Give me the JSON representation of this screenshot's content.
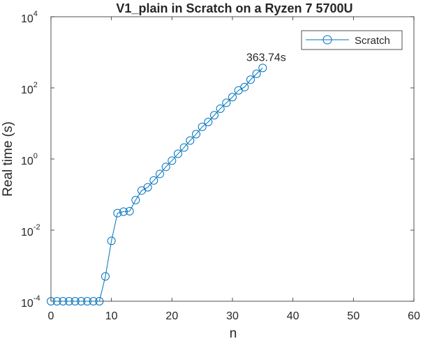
{
  "chart_data": {
    "type": "line",
    "title": "V1_plain in Scratch on a Ryzen 7 5700U",
    "xlabel": "n",
    "ylabel": "Real time (s)",
    "xlim": [
      0,
      60
    ],
    "ylim": [
      0.0001,
      10000
    ],
    "yscale": "log",
    "grid": false,
    "legend_position": "top-right",
    "x_ticks": [
      "0",
      "10",
      "20",
      "30",
      "40",
      "50",
      "60"
    ],
    "y_ticks": [
      {
        "base": "10",
        "exp": "-4"
      },
      {
        "base": "10",
        "exp": "-2"
      },
      {
        "base": "10",
        "exp": "0"
      },
      {
        "base": "10",
        "exp": "2"
      },
      {
        "base": "10",
        "exp": "4"
      }
    ],
    "series": [
      {
        "name": "Scratch",
        "color": "#0072bd",
        "marker": "circle",
        "x": [
          0,
          1,
          2,
          3,
          4,
          5,
          6,
          7,
          8,
          9,
          10,
          11,
          12,
          13,
          14,
          15,
          16,
          17,
          18,
          19,
          20,
          21,
          22,
          23,
          24,
          25,
          26,
          27,
          28,
          29,
          30,
          31,
          32,
          33,
          34,
          35
        ],
        "y": [
          0.0001,
          0.0001,
          0.0001,
          0.0001,
          0.0001,
          0.0001,
          0.0001,
          0.0001,
          0.0001,
          0.0005,
          0.005,
          0.03,
          0.033,
          0.034,
          0.07,
          0.13,
          0.16,
          0.25,
          0.38,
          0.6,
          0.9,
          1.4,
          2.1,
          3.3,
          5,
          8,
          11,
          17,
          26,
          38,
          55,
          85,
          105,
          170,
          250,
          363.74
        ]
      }
    ],
    "annotations": [
      {
        "text": "363.74s",
        "x": 35,
        "y": 363.74
      }
    ]
  }
}
